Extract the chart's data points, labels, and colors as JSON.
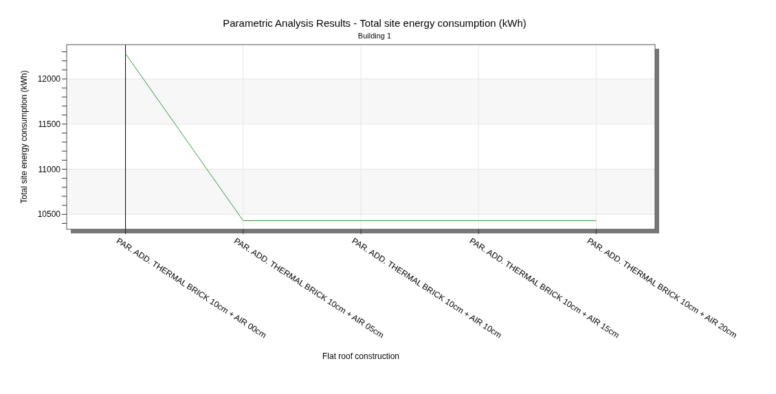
{
  "chart_data": {
    "type": "line",
    "title": "Parametric Analysis Results -  Total site energy consumption (kWh)",
    "subtitle": "Building 1",
    "xlabel": "Flat roof construction",
    "ylabel": "Total site energy consumption (kWh)",
    "categories": [
      "PAR. ADD. THERMAL BRICK 10cm + AIR 00cm",
      "PAR. ADD. THERMAL BRICK 10cm + AIR 05cm",
      "PAR. ADD. THERMAL BRICK 10cm + AIR 10cm",
      "PAR. ADD. THERMAL BRICK 10cm + AIR 15cm",
      "PAR. ADD. THERMAL BRICK 10cm + AIR 20cm"
    ],
    "series": [
      {
        "color": "#339933",
        "values": [
          12280,
          10430,
          10430,
          10430,
          10430
        ]
      }
    ],
    "ylim": [
      10335,
      12380
    ],
    "yticks": [
      {
        "value": 10400,
        "label": null
      },
      10500,
      {
        "value": 10600,
        "label": null
      },
      {
        "value": 10700,
        "label": null
      },
      {
        "value": 10800,
        "label": null
      },
      {
        "value": 10900,
        "label": null
      },
      11000,
      {
        "value": 11100,
        "label": null
      },
      {
        "value": 11200,
        "label": null
      },
      {
        "value": 11300,
        "label": null
      },
      {
        "value": 11400,
        "label": null
      },
      11500,
      {
        "value": 11600,
        "label": null
      },
      {
        "value": 11700,
        "label": null
      },
      {
        "value": 11800,
        "label": null
      },
      {
        "value": 11900,
        "label": null
      },
      12000,
      {
        "value": 12100,
        "label": null
      },
      {
        "value": 12200,
        "label": null
      },
      {
        "value": 12300,
        "label": null
      }
    ],
    "grid": true,
    "marker": "none",
    "line_style": "solid",
    "ref_lines": [
      {
        "axis": "x",
        "value": "PAR. ADD. THERMAL BRICK 10cm + AIR 00cm",
        "color": "#000000"
      }
    ]
  }
}
